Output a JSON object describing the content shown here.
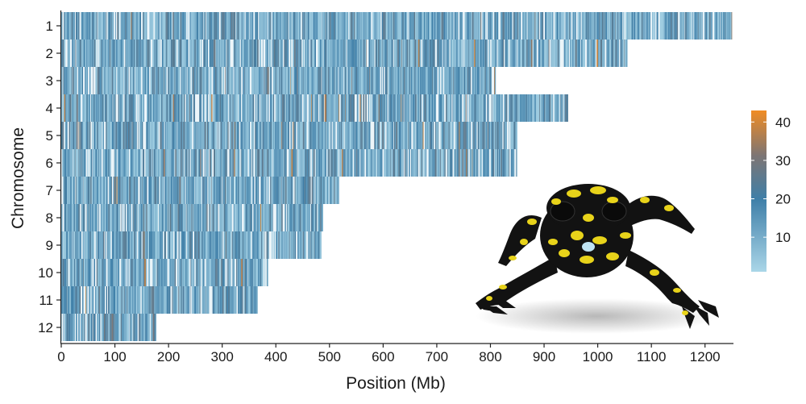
{
  "chart_data": {
    "type": "heatmap",
    "title": "",
    "xlabel": "Position (Mb)",
    "ylabel": "Chromosome",
    "xlim": [
      0,
      1250
    ],
    "x_ticks": [
      0,
      100,
      200,
      300,
      400,
      500,
      600,
      700,
      800,
      900,
      1000,
      1100,
      1200
    ],
    "categories": [
      "1",
      "2",
      "3",
      "4",
      "5",
      "6",
      "7",
      "8",
      "9",
      "10",
      "11",
      "12"
    ],
    "chromosome_length_mb": [
      1250,
      1055,
      810,
      945,
      850,
      850,
      518,
      488,
      485,
      386,
      366,
      177
    ],
    "colorbar": {
      "ticks": [
        10,
        20,
        30,
        40
      ],
      "range": [
        1,
        43
      ],
      "colors": [
        "#aad6e8",
        "#3f7fa8",
        "#7d7574",
        "#f08c24"
      ]
    },
    "grid": false,
    "legend_position": "right"
  },
  "image": {
    "icon": "frog-photo"
  }
}
